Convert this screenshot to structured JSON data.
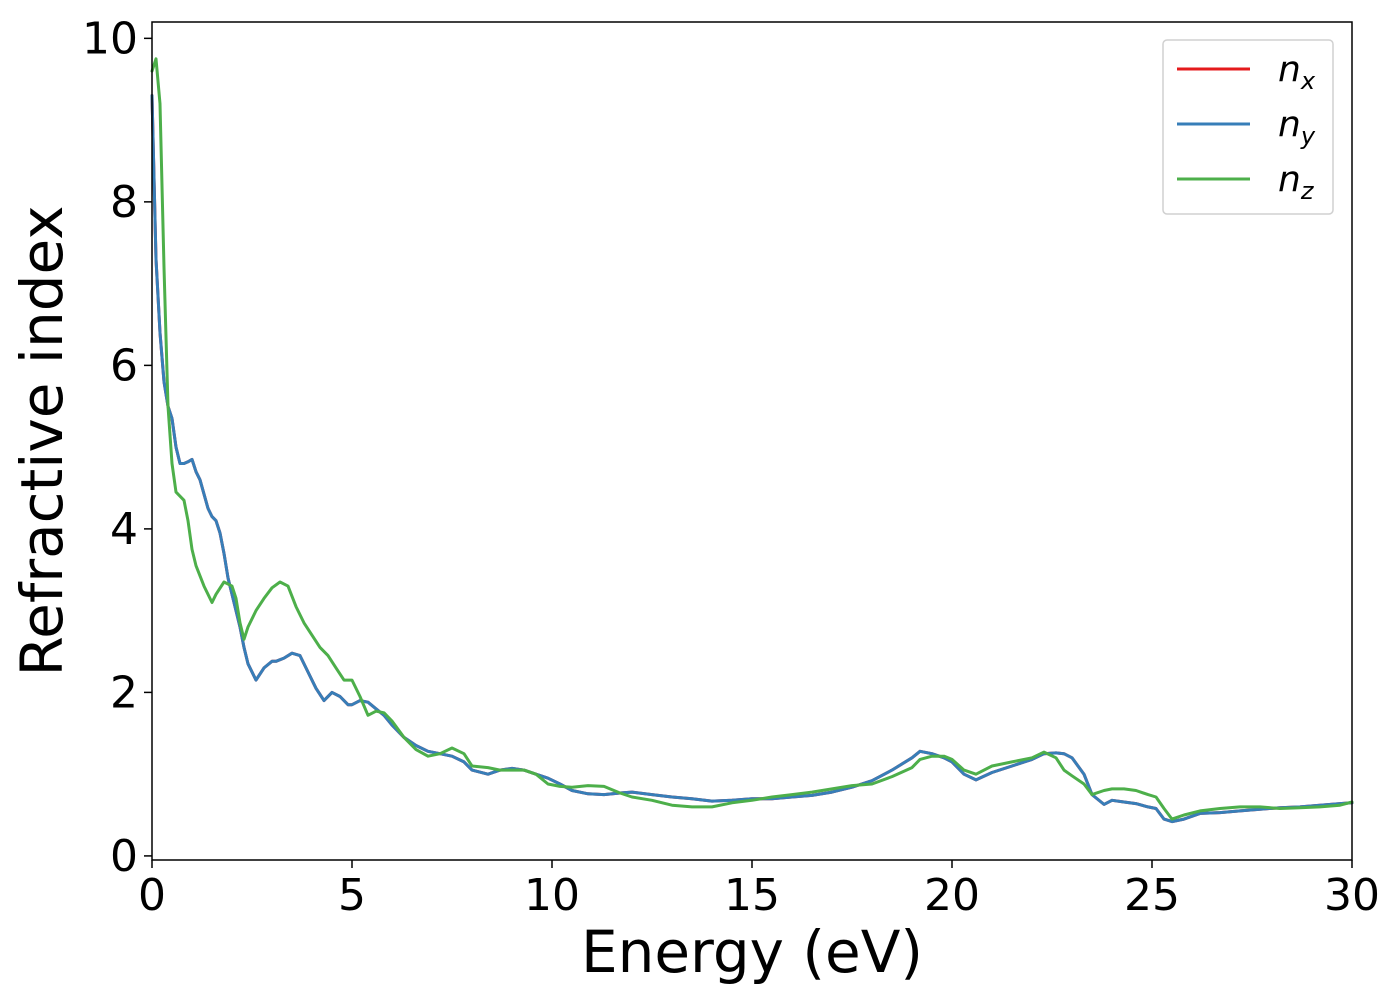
{
  "chart_data": {
    "type": "line",
    "xlabel": "Energy (eV)",
    "ylabel": "Refractive index",
    "xlim": [
      0,
      30
    ],
    "ylim": [
      -0.05,
      10.2
    ],
    "xticks": [
      0,
      5,
      10,
      15,
      20,
      25,
      30
    ],
    "yticks": [
      0,
      2,
      4,
      6,
      8,
      10
    ],
    "xtick_labels": [
      "0",
      "5",
      "10",
      "15",
      "20",
      "25",
      "30"
    ],
    "ytick_labels": [
      "0",
      "2",
      "4",
      "6",
      "8",
      "10"
    ],
    "grid": false,
    "legend": {
      "position": "top-right",
      "entries": [
        {
          "base": "n",
          "sub": "x",
          "color": "#e41a1c"
        },
        {
          "base": "n",
          "sub": "y",
          "color": "#377eb8"
        },
        {
          "base": "n",
          "sub": "z",
          "color": "#4daf4a"
        }
      ]
    },
    "series": [
      {
        "name": "n_x",
        "color": "#e41a1c",
        "x": [
          0.0,
          0.1,
          0.2,
          0.3,
          0.4,
          0.5,
          0.6,
          0.7,
          0.8,
          0.9,
          1.0,
          1.1,
          1.2,
          1.4,
          1.5,
          1.6,
          1.7,
          1.8,
          1.9,
          2.0,
          2.1,
          2.2,
          2.3,
          2.4,
          2.6,
          2.8,
          3.0,
          3.1,
          3.3,
          3.5,
          3.7,
          3.9,
          4.1,
          4.3,
          4.5,
          4.7,
          4.9,
          5.0,
          5.2,
          5.4,
          5.6,
          5.8,
          6.0,
          6.3,
          6.6,
          6.9,
          7.2,
          7.5,
          7.8,
          8.0,
          8.4,
          8.7,
          9.0,
          9.3,
          9.6,
          9.9,
          10.2,
          10.5,
          10.9,
          11.3,
          11.7,
          12.0,
          12.5,
          13.0,
          13.5,
          14.0,
          14.5,
          15.0,
          15.5,
          16.0,
          16.5,
          17.0,
          17.5,
          18.0,
          18.5,
          19.0,
          19.2,
          19.5,
          19.8,
          20.0,
          20.3,
          20.6,
          21.0,
          21.5,
          22.0,
          22.3,
          22.6,
          22.8,
          23.0,
          23.3,
          23.5,
          23.8,
          24.0,
          24.3,
          24.6,
          24.9,
          25.1,
          25.3,
          25.5,
          25.8,
          26.2,
          26.7,
          27.2,
          27.7,
          28.2,
          28.7,
          29.2,
          29.7,
          30.0
        ],
        "y": [
          9.3,
          7.3,
          6.4,
          5.8,
          5.5,
          5.35,
          5.0,
          4.8,
          4.8,
          4.82,
          4.85,
          4.7,
          4.6,
          4.25,
          4.15,
          4.1,
          3.95,
          3.7,
          3.4,
          3.2,
          3.0,
          2.8,
          2.55,
          2.35,
          2.15,
          2.3,
          2.38,
          2.38,
          2.42,
          2.48,
          2.45,
          2.25,
          2.05,
          1.9,
          2.0,
          1.95,
          1.85,
          1.85,
          1.9,
          1.88,
          1.8,
          1.72,
          1.6,
          1.45,
          1.35,
          1.28,
          1.25,
          1.22,
          1.15,
          1.05,
          1.0,
          1.05,
          1.07,
          1.05,
          1.0,
          0.95,
          0.88,
          0.8,
          0.76,
          0.75,
          0.77,
          0.78,
          0.75,
          0.72,
          0.7,
          0.67,
          0.68,
          0.7,
          0.7,
          0.72,
          0.74,
          0.78,
          0.84,
          0.92,
          1.05,
          1.2,
          1.28,
          1.25,
          1.2,
          1.15,
          1.0,
          0.93,
          1.02,
          1.1,
          1.18,
          1.25,
          1.26,
          1.25,
          1.2,
          1.0,
          0.75,
          0.63,
          0.68,
          0.66,
          0.64,
          0.6,
          0.58,
          0.45,
          0.42,
          0.45,
          0.52,
          0.53,
          0.55,
          0.57,
          0.59,
          0.6,
          0.62,
          0.64,
          0.65
        ]
      },
      {
        "name": "n_y",
        "color": "#377eb8",
        "x": [
          0.0,
          0.1,
          0.2,
          0.3,
          0.4,
          0.5,
          0.6,
          0.7,
          0.8,
          0.9,
          1.0,
          1.1,
          1.2,
          1.4,
          1.5,
          1.6,
          1.7,
          1.8,
          1.9,
          2.0,
          2.1,
          2.2,
          2.3,
          2.4,
          2.6,
          2.8,
          3.0,
          3.1,
          3.3,
          3.5,
          3.7,
          3.9,
          4.1,
          4.3,
          4.5,
          4.7,
          4.9,
          5.0,
          5.2,
          5.4,
          5.6,
          5.8,
          6.0,
          6.3,
          6.6,
          6.9,
          7.2,
          7.5,
          7.8,
          8.0,
          8.4,
          8.7,
          9.0,
          9.3,
          9.6,
          9.9,
          10.2,
          10.5,
          10.9,
          11.3,
          11.7,
          12.0,
          12.5,
          13.0,
          13.5,
          14.0,
          14.5,
          15.0,
          15.5,
          16.0,
          16.5,
          17.0,
          17.5,
          18.0,
          18.5,
          19.0,
          19.2,
          19.5,
          19.8,
          20.0,
          20.3,
          20.6,
          21.0,
          21.5,
          22.0,
          22.3,
          22.6,
          22.8,
          23.0,
          23.3,
          23.5,
          23.8,
          24.0,
          24.3,
          24.6,
          24.9,
          25.1,
          25.3,
          25.5,
          25.8,
          26.2,
          26.7,
          27.2,
          27.7,
          28.2,
          28.7,
          29.2,
          29.7,
          30.0
        ],
        "y": [
          9.3,
          7.3,
          6.4,
          5.8,
          5.5,
          5.35,
          5.0,
          4.8,
          4.8,
          4.82,
          4.85,
          4.7,
          4.6,
          4.25,
          4.15,
          4.1,
          3.95,
          3.7,
          3.4,
          3.2,
          3.0,
          2.8,
          2.55,
          2.35,
          2.15,
          2.3,
          2.38,
          2.38,
          2.42,
          2.48,
          2.45,
          2.25,
          2.05,
          1.9,
          2.0,
          1.95,
          1.85,
          1.85,
          1.9,
          1.88,
          1.8,
          1.72,
          1.6,
          1.45,
          1.35,
          1.28,
          1.25,
          1.22,
          1.15,
          1.05,
          1.0,
          1.05,
          1.07,
          1.05,
          1.0,
          0.95,
          0.88,
          0.8,
          0.76,
          0.75,
          0.77,
          0.78,
          0.75,
          0.72,
          0.7,
          0.67,
          0.68,
          0.7,
          0.7,
          0.72,
          0.74,
          0.78,
          0.84,
          0.92,
          1.05,
          1.2,
          1.28,
          1.25,
          1.2,
          1.15,
          1.0,
          0.93,
          1.02,
          1.1,
          1.18,
          1.25,
          1.26,
          1.25,
          1.2,
          1.0,
          0.75,
          0.63,
          0.68,
          0.66,
          0.64,
          0.6,
          0.58,
          0.45,
          0.42,
          0.45,
          0.52,
          0.53,
          0.55,
          0.57,
          0.59,
          0.6,
          0.62,
          0.64,
          0.65
        ]
      },
      {
        "name": "n_z",
        "color": "#4daf4a",
        "x": [
          0.0,
          0.1,
          0.2,
          0.3,
          0.4,
          0.5,
          0.6,
          0.7,
          0.8,
          0.9,
          1.0,
          1.1,
          1.3,
          1.5,
          1.6,
          1.8,
          2.0,
          2.1,
          2.2,
          2.3,
          2.4,
          2.6,
          2.8,
          3.0,
          3.2,
          3.4,
          3.6,
          3.8,
          4.0,
          4.2,
          4.4,
          4.6,
          4.8,
          5.0,
          5.2,
          5.4,
          5.6,
          5.8,
          6.0,
          6.3,
          6.6,
          6.9,
          7.2,
          7.5,
          7.8,
          8.0,
          8.4,
          8.7,
          9.0,
          9.3,
          9.6,
          9.9,
          10.2,
          10.5,
          10.9,
          11.3,
          11.7,
          12.0,
          12.5,
          13.0,
          13.5,
          14.0,
          14.5,
          15.0,
          15.5,
          16.0,
          16.5,
          17.0,
          17.5,
          18.0,
          18.5,
          19.0,
          19.2,
          19.5,
          19.8,
          20.0,
          20.3,
          20.6,
          21.0,
          21.5,
          22.0,
          22.3,
          22.6,
          22.8,
          23.0,
          23.3,
          23.5,
          23.8,
          24.0,
          24.3,
          24.6,
          24.9,
          25.1,
          25.3,
          25.5,
          25.8,
          26.2,
          26.7,
          27.2,
          27.7,
          28.2,
          28.7,
          29.2,
          29.7,
          30.0
        ],
        "y": [
          9.6,
          9.75,
          9.2,
          7.2,
          5.5,
          4.8,
          4.45,
          4.4,
          4.35,
          4.1,
          3.75,
          3.55,
          3.3,
          3.1,
          3.2,
          3.35,
          3.3,
          3.15,
          2.85,
          2.65,
          2.8,
          3.0,
          3.15,
          3.28,
          3.35,
          3.3,
          3.05,
          2.85,
          2.7,
          2.55,
          2.45,
          2.3,
          2.15,
          2.15,
          1.95,
          1.72,
          1.77,
          1.75,
          1.65,
          1.45,
          1.3,
          1.22,
          1.25,
          1.32,
          1.25,
          1.1,
          1.08,
          1.05,
          1.05,
          1.05,
          1.0,
          0.88,
          0.85,
          0.84,
          0.86,
          0.85,
          0.77,
          0.72,
          0.68,
          0.62,
          0.6,
          0.6,
          0.65,
          0.68,
          0.72,
          0.75,
          0.78,
          0.82,
          0.86,
          0.88,
          0.97,
          1.08,
          1.18,
          1.22,
          1.22,
          1.18,
          1.05,
          1.0,
          1.1,
          1.15,
          1.2,
          1.27,
          1.2,
          1.05,
          0.98,
          0.88,
          0.75,
          0.8,
          0.82,
          0.82,
          0.8,
          0.75,
          0.72,
          0.58,
          0.45,
          0.5,
          0.55,
          0.58,
          0.6,
          0.6,
          0.58,
          0.59,
          0.6,
          0.62,
          0.66
        ]
      }
    ]
  }
}
